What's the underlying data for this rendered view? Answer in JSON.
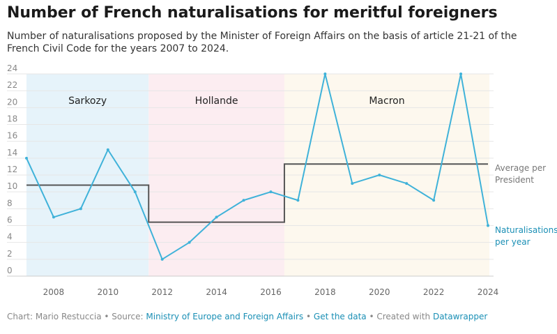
{
  "title": "Number of French naturalisations for meritful foreigners",
  "subtitle": "Number of naturalisations proposed by the Minister of Foreign Affairs on the basis of article 21-21 of the French Civil Code for the years 2007 to 2024.",
  "footer": {
    "chart_by": "Chart: Mario Restuccia",
    "sep1": " • Source: ",
    "source_link": "Ministry of Europe and Foreign Affairs",
    "sep2": " • ",
    "data_link": "Get the data",
    "sep3": " • Created with ",
    "tool_link": "Datawrapper"
  },
  "colors": {
    "line": "#3fb2d9",
    "average": "#555555",
    "sarkozy_band": "#e6f3fa",
    "hollande_band": "#fcedf1",
    "macron_band": "#fdf8ee",
    "grid": "#e6e6e6",
    "axis_text": "#888888"
  },
  "chart_data": {
    "type": "line",
    "title": "Number of French naturalisations for meritful foreigners",
    "x": [
      2007,
      2008,
      2009,
      2010,
      2011,
      2012,
      2013,
      2014,
      2015,
      2016,
      2017,
      2018,
      2019,
      2020,
      2021,
      2022,
      2023,
      2024
    ],
    "series": [
      {
        "name": "Naturalisations per year",
        "label": [
          "Naturalisations",
          "per year"
        ],
        "values": [
          14,
          7,
          8,
          15,
          10,
          2,
          4,
          7,
          9,
          10,
          9,
          24,
          11,
          12,
          11,
          9,
          24,
          6
        ]
      },
      {
        "name": "Average per President",
        "label": [
          "Average per",
          "President"
        ],
        "steps": [
          {
            "from": 2007,
            "to": 2011.5,
            "value": 10.8
          },
          {
            "from": 2011.5,
            "to": 2016.5,
            "value": 6.4
          },
          {
            "from": 2016.5,
            "to": 2024,
            "value": 13.3
          }
        ]
      }
    ],
    "periods": [
      {
        "name": "Sarkozy",
        "from": 2007,
        "to": 2011.5,
        "color_key": "sarkozy_band"
      },
      {
        "name": "Hollande",
        "from": 2011.5,
        "to": 2016.5,
        "color_key": "hollande_band"
      },
      {
        "name": "Macron",
        "from": 2016.5,
        "to": 2024,
        "color_key": "macron_band"
      }
    ],
    "xticks": [
      2008,
      2010,
      2012,
      2014,
      2016,
      2018,
      2020,
      2022,
      2024
    ],
    "yticks": [
      0,
      2,
      4,
      6,
      8,
      10,
      12,
      14,
      16,
      18,
      20,
      22,
      24
    ],
    "xlim": [
      2007,
      2024
    ],
    "ylim": [
      0,
      24
    ],
    "grid": true
  }
}
